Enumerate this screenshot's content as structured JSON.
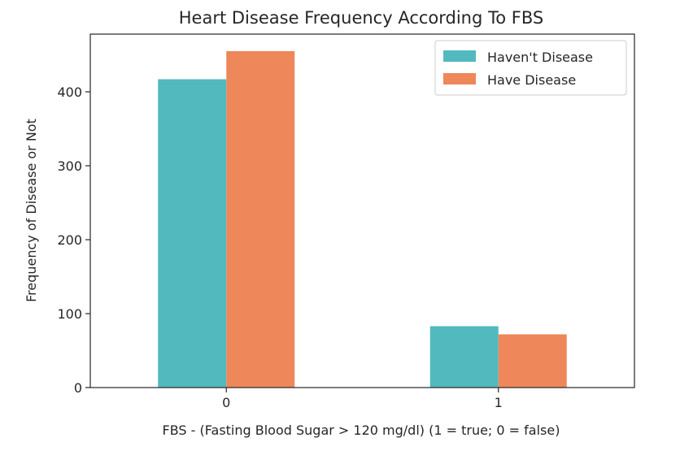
{
  "chart_data": {
    "type": "bar",
    "title": "Heart Disease Frequency According To FBS",
    "xlabel": "FBS - (Fasting Blood Sugar > 120 mg/dl) (1 = true; 0 = false)",
    "ylabel": "Frequency of Disease or Not",
    "categories": [
      "0",
      "1"
    ],
    "series": [
      {
        "name": "Haven't Disease",
        "values": [
          417,
          83
        ],
        "color": "#52b9bf"
      },
      {
        "name": "Have Disease",
        "values": [
          455,
          72
        ],
        "color": "#ee875a"
      }
    ],
    "ylim": [
      0,
      478
    ],
    "yticks": [
      0,
      100,
      200,
      300,
      400
    ],
    "grid": false,
    "legend_position": "top-right"
  }
}
